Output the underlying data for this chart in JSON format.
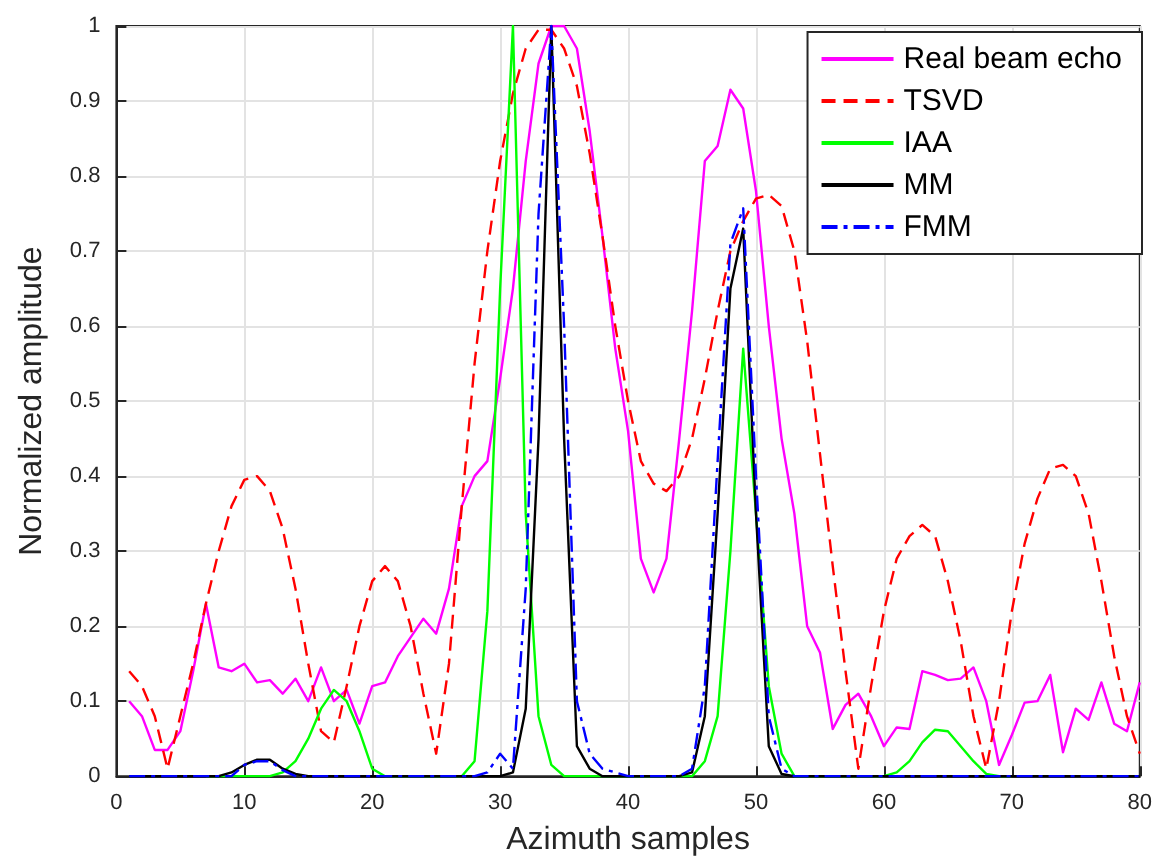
{
  "chart_data": {
    "type": "line",
    "xlabel": "Azimuth samples",
    "ylabel": "Normalized amplitude",
    "xlim": [
      0,
      80
    ],
    "xticks": [
      0,
      10,
      20,
      30,
      40,
      50,
      60,
      70,
      80
    ],
    "ylim": [
      0,
      1
    ],
    "yticks": [
      0,
      0.1,
      0.2,
      0.3,
      0.4,
      0.5,
      0.6,
      0.7,
      0.8,
      0.9,
      1
    ],
    "grid": true,
    "legend": "top right",
    "marker": "none",
    "x": [
      1,
      2,
      3,
      4,
      5,
      6,
      7,
      8,
      9,
      10,
      11,
      12,
      13,
      14,
      15,
      16,
      17,
      18,
      19,
      20,
      21,
      22,
      23,
      24,
      25,
      26,
      27,
      28,
      29,
      30,
      31,
      32,
      33,
      34,
      35,
      36,
      37,
      38,
      39,
      40,
      41,
      42,
      43,
      44,
      45,
      46,
      47,
      48,
      49,
      50,
      51,
      52,
      53,
      54,
      55,
      56,
      57,
      58,
      59,
      60,
      61,
      62,
      63,
      64,
      65,
      66,
      67,
      68,
      69,
      70,
      71,
      72,
      73,
      74,
      75,
      76,
      77,
      78,
      79,
      80
    ],
    "series": [
      {
        "name": "Real beam echo",
        "color": "#ff00ff",
        "line_style": "solid",
        "values": [
          0.1,
          0.08,
          0.035,
          0.035,
          0.06,
          0.14,
          0.23,
          0.145,
          0.14,
          0.15,
          0.125,
          0.128,
          0.11,
          0.13,
          0.1,
          0.145,
          0.1,
          0.115,
          0.07,
          0.12,
          0.125,
          0.16,
          0.185,
          0.21,
          0.19,
          0.25,
          0.36,
          0.4,
          0.42,
          0.53,
          0.65,
          0.82,
          0.95,
          1.0,
          1.0,
          0.97,
          0.86,
          0.72,
          0.57,
          0.46,
          0.29,
          0.245,
          0.29,
          0.45,
          0.62,
          0.82,
          0.84,
          0.915,
          0.89,
          0.78,
          0.6,
          0.45,
          0.35,
          0.2,
          0.165,
          0.063,
          0.095,
          0.11,
          0.08,
          0.04,
          0.065,
          0.063,
          0.14,
          0.135,
          0.128,
          0.13,
          0.145,
          0.1,
          0.015,
          0.055,
          0.098,
          0.1,
          0.135,
          0.032,
          0.09,
          0.075,
          0.125,
          0.07,
          0.06,
          0.125
        ]
      },
      {
        "name": "TSVD",
        "color": "#ff0000",
        "line_style": "dashed",
        "values": [
          0.14,
          0.12,
          0.08,
          0.01,
          0.08,
          0.15,
          0.23,
          0.3,
          0.36,
          0.395,
          0.4,
          0.38,
          0.33,
          0.25,
          0.15,
          0.06,
          0.045,
          0.12,
          0.2,
          0.26,
          0.28,
          0.26,
          0.2,
          0.11,
          0.03,
          0.15,
          0.36,
          0.55,
          0.7,
          0.82,
          0.91,
          0.97,
          0.995,
          0.995,
          0.97,
          0.92,
          0.83,
          0.72,
          0.6,
          0.5,
          0.42,
          0.39,
          0.38,
          0.4,
          0.45,
          0.53,
          0.62,
          0.7,
          0.74,
          0.77,
          0.775,
          0.76,
          0.7,
          0.58,
          0.43,
          0.28,
          0.14,
          0.01,
          0.12,
          0.22,
          0.29,
          0.32,
          0.335,
          0.32,
          0.26,
          0.18,
          0.08,
          0.01,
          0.1,
          0.22,
          0.31,
          0.37,
          0.41,
          0.415,
          0.4,
          0.35,
          0.26,
          0.16,
          0.08,
          0.03
        ]
      },
      {
        "name": "IAA",
        "color": "#00ff00",
        "line_style": "solid",
        "values": [
          null,
          null,
          null,
          null,
          null,
          null,
          0,
          0,
          0,
          0,
          0,
          0,
          0.005,
          0.02,
          0.05,
          0.09,
          0.115,
          0.1,
          0.06,
          0.01,
          0,
          0,
          0,
          0,
          0,
          0,
          0,
          0.02,
          0.22,
          0.65,
          1.0,
          0.35,
          0.08,
          0.015,
          0,
          0,
          0,
          0,
          0,
          0,
          0,
          0,
          0,
          0,
          0,
          0.02,
          0.08,
          0.3,
          0.57,
          0.35,
          0.12,
          0.03,
          0,
          0,
          0,
          0,
          0,
          0,
          0,
          0,
          0.005,
          0.02,
          0.045,
          0.062,
          0.06,
          0.04,
          0.02,
          0.003,
          0,
          0,
          null,
          null,
          null,
          null,
          null,
          null,
          null,
          null,
          null,
          null
        ]
      },
      {
        "name": "MM",
        "color": "#000000",
        "line_style": "solid",
        "values": [
          0,
          0,
          0,
          0,
          0,
          0,
          0,
          0,
          0.005,
          0.015,
          0.022,
          0.022,
          0.01,
          0.003,
          0,
          0,
          0,
          0,
          0,
          0,
          0,
          0,
          0,
          0,
          0,
          0,
          0,
          0,
          0,
          0,
          0.005,
          0.09,
          0.45,
          1.0,
          0.45,
          0.04,
          0.01,
          0,
          0,
          0,
          0,
          0,
          0,
          0,
          0.005,
          0.08,
          0.35,
          0.65,
          0.73,
          0.35,
          0.04,
          0.003,
          0,
          0,
          0,
          0,
          0,
          0,
          0,
          0,
          0,
          0,
          0,
          0,
          0,
          0,
          0,
          0,
          0,
          0,
          0,
          0,
          0,
          0,
          0,
          0,
          0,
          0,
          0,
          0
        ]
      },
      {
        "name": "FMM",
        "color": "#0000ff",
        "line_style": "dashdot",
        "values": [
          0,
          0,
          0,
          0,
          0,
          0,
          0,
          0,
          0,
          0.015,
          0.02,
          0.02,
          0.008,
          0,
          0,
          0,
          0,
          0,
          0,
          0,
          0,
          0,
          0,
          0,
          0,
          0,
          0,
          0,
          0.005,
          0.03,
          0.01,
          0.25,
          0.75,
          1.0,
          0.6,
          0.1,
          0.03,
          0.01,
          0.005,
          0,
          0,
          0,
          0,
          0,
          0.01,
          0.12,
          0.42,
          0.71,
          0.757,
          0.4,
          0.08,
          0.01,
          0,
          0,
          0,
          0,
          0,
          0,
          0,
          0,
          0,
          0,
          0,
          0,
          0,
          0,
          0,
          0,
          0,
          0,
          0,
          0,
          0,
          0,
          0,
          0,
          0,
          0,
          0,
          0
        ]
      }
    ]
  }
}
